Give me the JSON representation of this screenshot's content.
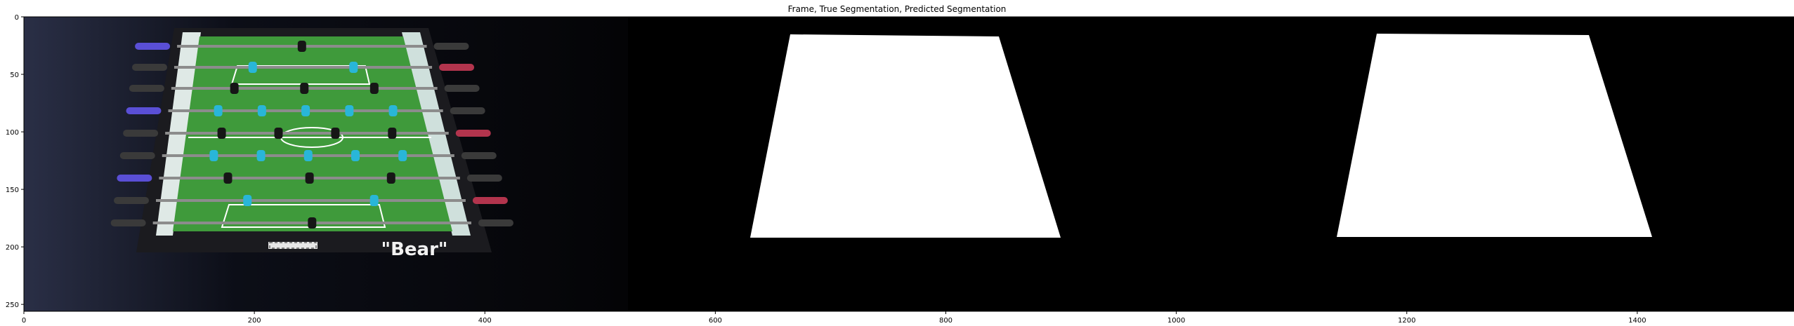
{
  "figure": {
    "title": "Frame, True Segmentation, Predicted Segmentation",
    "panels": [
      {
        "name": "frame",
        "description_label": ""
      },
      {
        "name": "true-segmentation"
      },
      {
        "name": "predicted-segmentation"
      }
    ]
  },
  "frame_text": {
    "table_logo": "\"Bear\""
  },
  "axes": {
    "x_ticks": [
      0,
      200,
      400,
      600,
      800,
      1000,
      1200,
      1400
    ],
    "y_ticks": [
      0,
      50,
      100,
      150,
      200,
      250
    ],
    "xlim": [
      0,
      1536
    ],
    "ylim": [
      256,
      0
    ]
  },
  "colors": {
    "background": "#000000",
    "mask": "#ffffff",
    "field": "#3f9a3b",
    "rod": "#8c8c8c",
    "player_cyan": "#29b6d8",
    "player_black": "#161616",
    "handle_purple": "#5a4fd6",
    "handle_red": "#b2344d"
  }
}
